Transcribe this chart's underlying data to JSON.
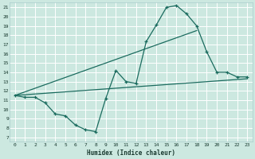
{
  "title": "",
  "xlabel": "Humidex (Indice chaleur)",
  "background_color": "#cce8e0",
  "grid_color": "#ffffff",
  "line_color": "#1a6b5e",
  "xlim": [
    -0.5,
    23.5
  ],
  "ylim": [
    6.5,
    21.5
  ],
  "xticks": [
    0,
    1,
    2,
    3,
    4,
    5,
    6,
    7,
    8,
    9,
    10,
    11,
    12,
    13,
    14,
    15,
    16,
    17,
    18,
    19,
    20,
    21,
    22,
    23
  ],
  "yticks": [
    7,
    8,
    9,
    10,
    11,
    12,
    13,
    14,
    15,
    16,
    17,
    18,
    19,
    20,
    21
  ],
  "line1_x": [
    0,
    1,
    2,
    3,
    4,
    5,
    6,
    7,
    8,
    9,
    10,
    11,
    12,
    13,
    14,
    15,
    16,
    17,
    18,
    19,
    20,
    21,
    22,
    23
  ],
  "line1_y": [
    11.5,
    11.3,
    11.3,
    10.7,
    9.5,
    9.3,
    8.3,
    7.8,
    7.6,
    11.2,
    14.2,
    13.0,
    12.8,
    17.3,
    19.1,
    21.0,
    21.2,
    20.3,
    19.0,
    16.2,
    14.0,
    14.0,
    13.5,
    13.5
  ],
  "line2_x": [
    0,
    18
  ],
  "line2_y": [
    11.5,
    18.5
  ],
  "line3_x": [
    0,
    23
  ],
  "line3_y": [
    11.5,
    13.3
  ]
}
